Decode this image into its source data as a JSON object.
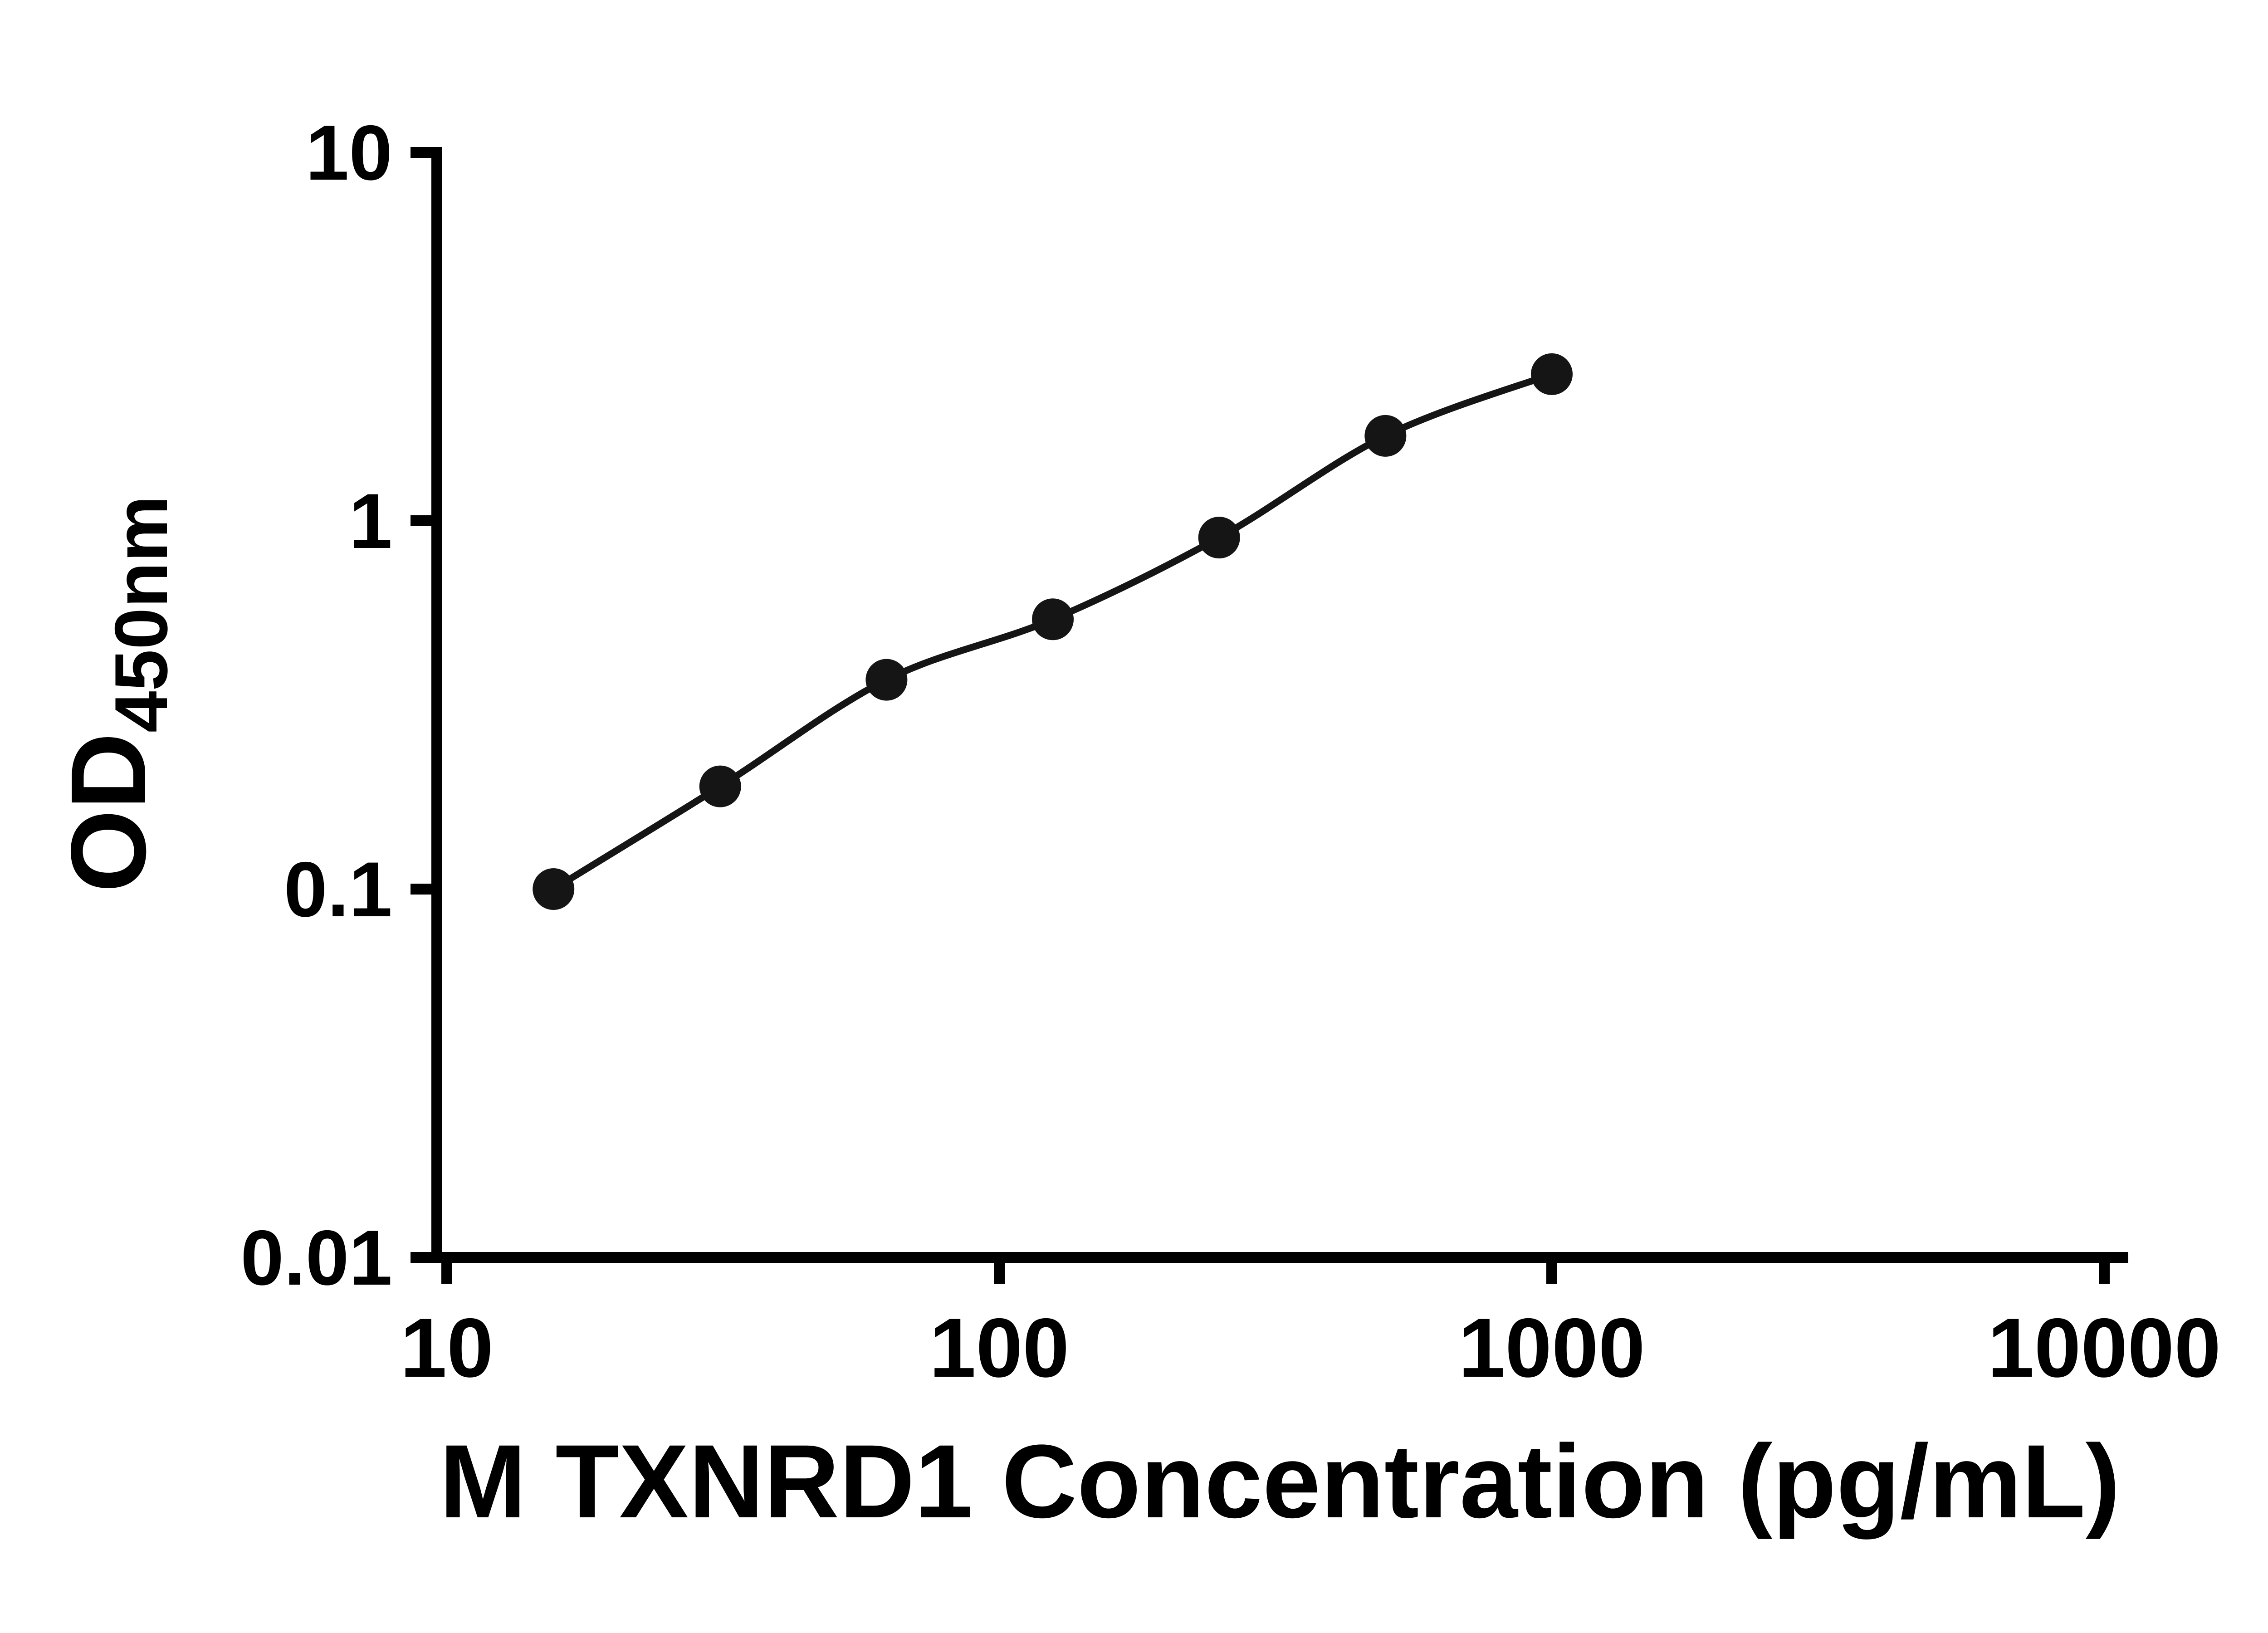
{
  "chart_data": {
    "type": "line",
    "title": "",
    "xlabel": "M TXNRD1 Concentration (pg/mL)",
    "ylabel_main": "OD",
    "ylabel_sub": "450nm",
    "xscale": "log",
    "yscale": "log",
    "xlim": [
      10,
      10000
    ],
    "ylim": [
      0.01,
      10
    ],
    "grid": false,
    "legend": "none",
    "marker": "circle",
    "x_ticks": [
      {
        "value": 10,
        "label": "10"
      },
      {
        "value": 100,
        "label": "100"
      },
      {
        "value": 1000,
        "label": "1000"
      },
      {
        "value": 10000,
        "label": "10000"
      }
    ],
    "y_ticks": [
      {
        "value": 0.01,
        "label": "0.01"
      },
      {
        "value": 0.1,
        "label": "0.1"
      },
      {
        "value": 1,
        "label": "1"
      },
      {
        "value": 10,
        "label": "10"
      }
    ],
    "points": [
      {
        "x": 15.6,
        "y": 0.1
      },
      {
        "x": 31.25,
        "y": 0.19
      },
      {
        "x": 62.5,
        "y": 0.37
      },
      {
        "x": 125,
        "y": 0.54
      },
      {
        "x": 250,
        "y": 0.9
      },
      {
        "x": 500,
        "y": 1.7
      },
      {
        "x": 1000,
        "y": 2.5
      }
    ],
    "colors": {
      "axis": "#000000",
      "line": "#151515",
      "marker": "#151515",
      "text": "#000000",
      "background": "#ffffff"
    }
  }
}
